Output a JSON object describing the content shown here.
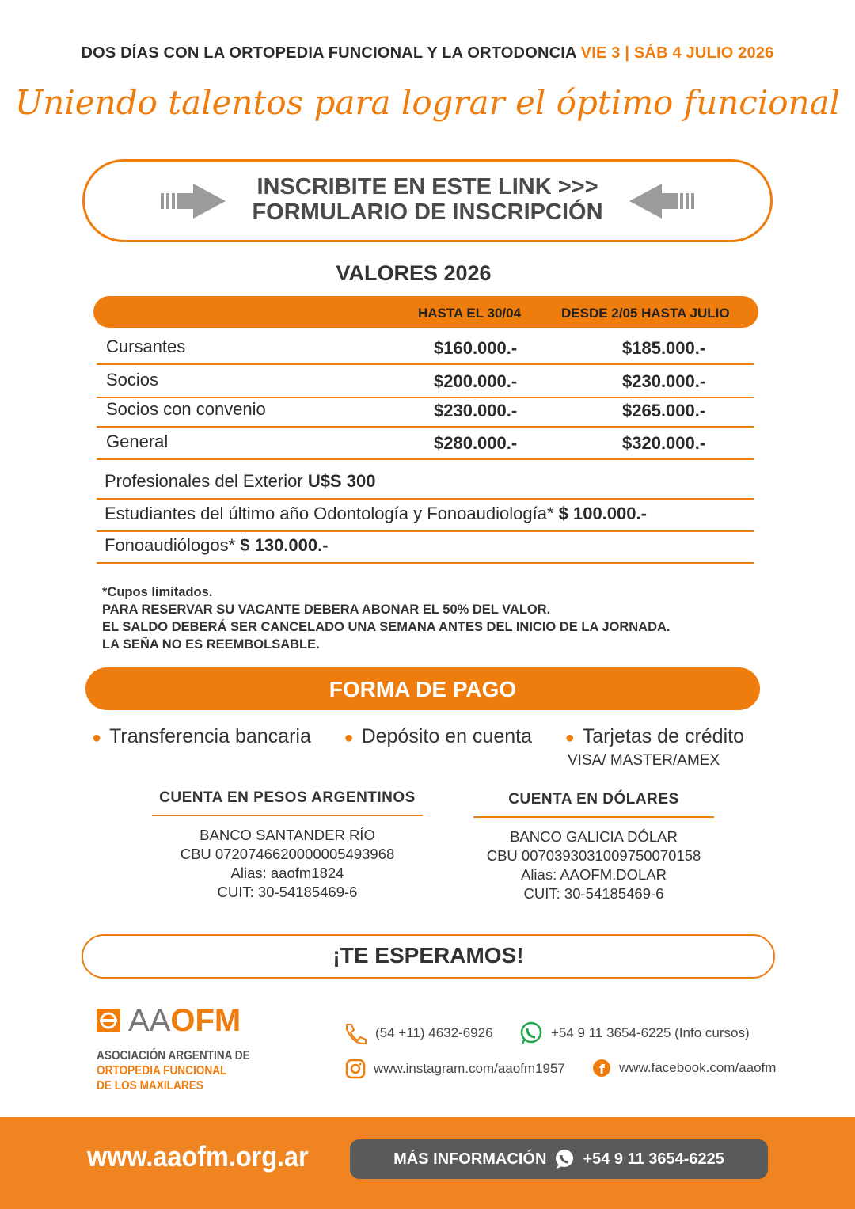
{
  "header": {
    "title": "DOS DÍAS CON LA ORTOPEDIA FUNCIONAL Y LA ORTODONCIA",
    "dates": "VIE 3 | SÁB 4 JULIO 2026"
  },
  "tagline": "Uniendo talentos para lograr el óptimo funcional",
  "signup": {
    "line1": "INSCRIBITE EN ESTE LINK >>>",
    "line2": "FORMULARIO DE INSCRIPCIÓN"
  },
  "prices": {
    "title": "VALORES 2026",
    "columns": [
      "HASTA EL 30/04",
      "DESDE 2/05 HASTA JULIO"
    ],
    "rows": [
      {
        "label": "Cursantes",
        "early": "$160.000.-",
        "late": "$185.000.-"
      },
      {
        "label": "Socios",
        "early": "$200.000.-",
        "late": "$230.000.-"
      },
      {
        "label": "Socios con convenio",
        "early": "$230.000.-",
        "late": "$265.000.-"
      },
      {
        "label": "General",
        "early": "$280.000.-",
        "late": "$320.000.-"
      }
    ],
    "extra": [
      {
        "label": "Profesionales del Exterior",
        "value": "U$S 300"
      },
      {
        "label": "Estudiantes del último año Odontología y Fonoaudiología*",
        "value": "$ 100.000.-"
      },
      {
        "label": "Fonoaudiólogos*",
        "value": "$ 130.000.-"
      }
    ]
  },
  "notes": [
    "*Cupos limitados.",
    "PARA RESERVAR SU VACANTE DEBERA ABONAR EL 50% DEL VALOR.",
    "EL SALDO DEBERÁ SER CANCELADO UNA SEMANA ANTES DEL INICIO DE LA JORNADA.",
    "LA SEÑA NO ES REEMBOLSABLE."
  ],
  "payment": {
    "title": "FORMA DE PAGO",
    "methods": [
      "Transferencia bancaria",
      "Depósito en cuenta",
      "Tarjetas de crédito"
    ],
    "cards": "VISA/ MASTER/AMEX",
    "accounts": [
      {
        "title": "CUENTA EN PESOS ARGENTINOS",
        "bank": "BANCO SANTANDER RÍO",
        "cbu": "CBU 0720746620000005493968",
        "alias": "Alias: aaofm1824",
        "cuit": "CUIT:  30-54185469-6"
      },
      {
        "title": "CUENTA EN DÓLARES",
        "bank": "BANCO GALICIA DÓLAR",
        "cbu": "CBU 0070393031009750070158",
        "alias": "Alias: AAOFM.DOLAR",
        "cuit": "CUIT:  30-54185469-6"
      }
    ]
  },
  "closing": "¡TE ESPERAMOS!",
  "logo": {
    "aa": "AA",
    "ofm": "OFM",
    "line1": "ASOCIACIÓN ARGENTINA DE",
    "line2": "ORTOPEDIA FUNCIONAL",
    "line3": "DE LOS MAXILARES"
  },
  "contacts": {
    "phone": "(54 +11) 4632-6926",
    "whatsapp": "+54 9 11 3654-6225 (Info cursos)",
    "instagram": "www.instagram.com/aaofm1957",
    "facebook": "www.facebook.com/aaofm"
  },
  "footer": {
    "website": "www.aaofm.org.ar",
    "more_info": "MÁS INFORMACIÓN",
    "more_phone": "+54 9 11 3654-6225"
  },
  "colors": {
    "accent": "#ee7d0e",
    "footer": "#f08421",
    "button": "#5a5a5a"
  }
}
